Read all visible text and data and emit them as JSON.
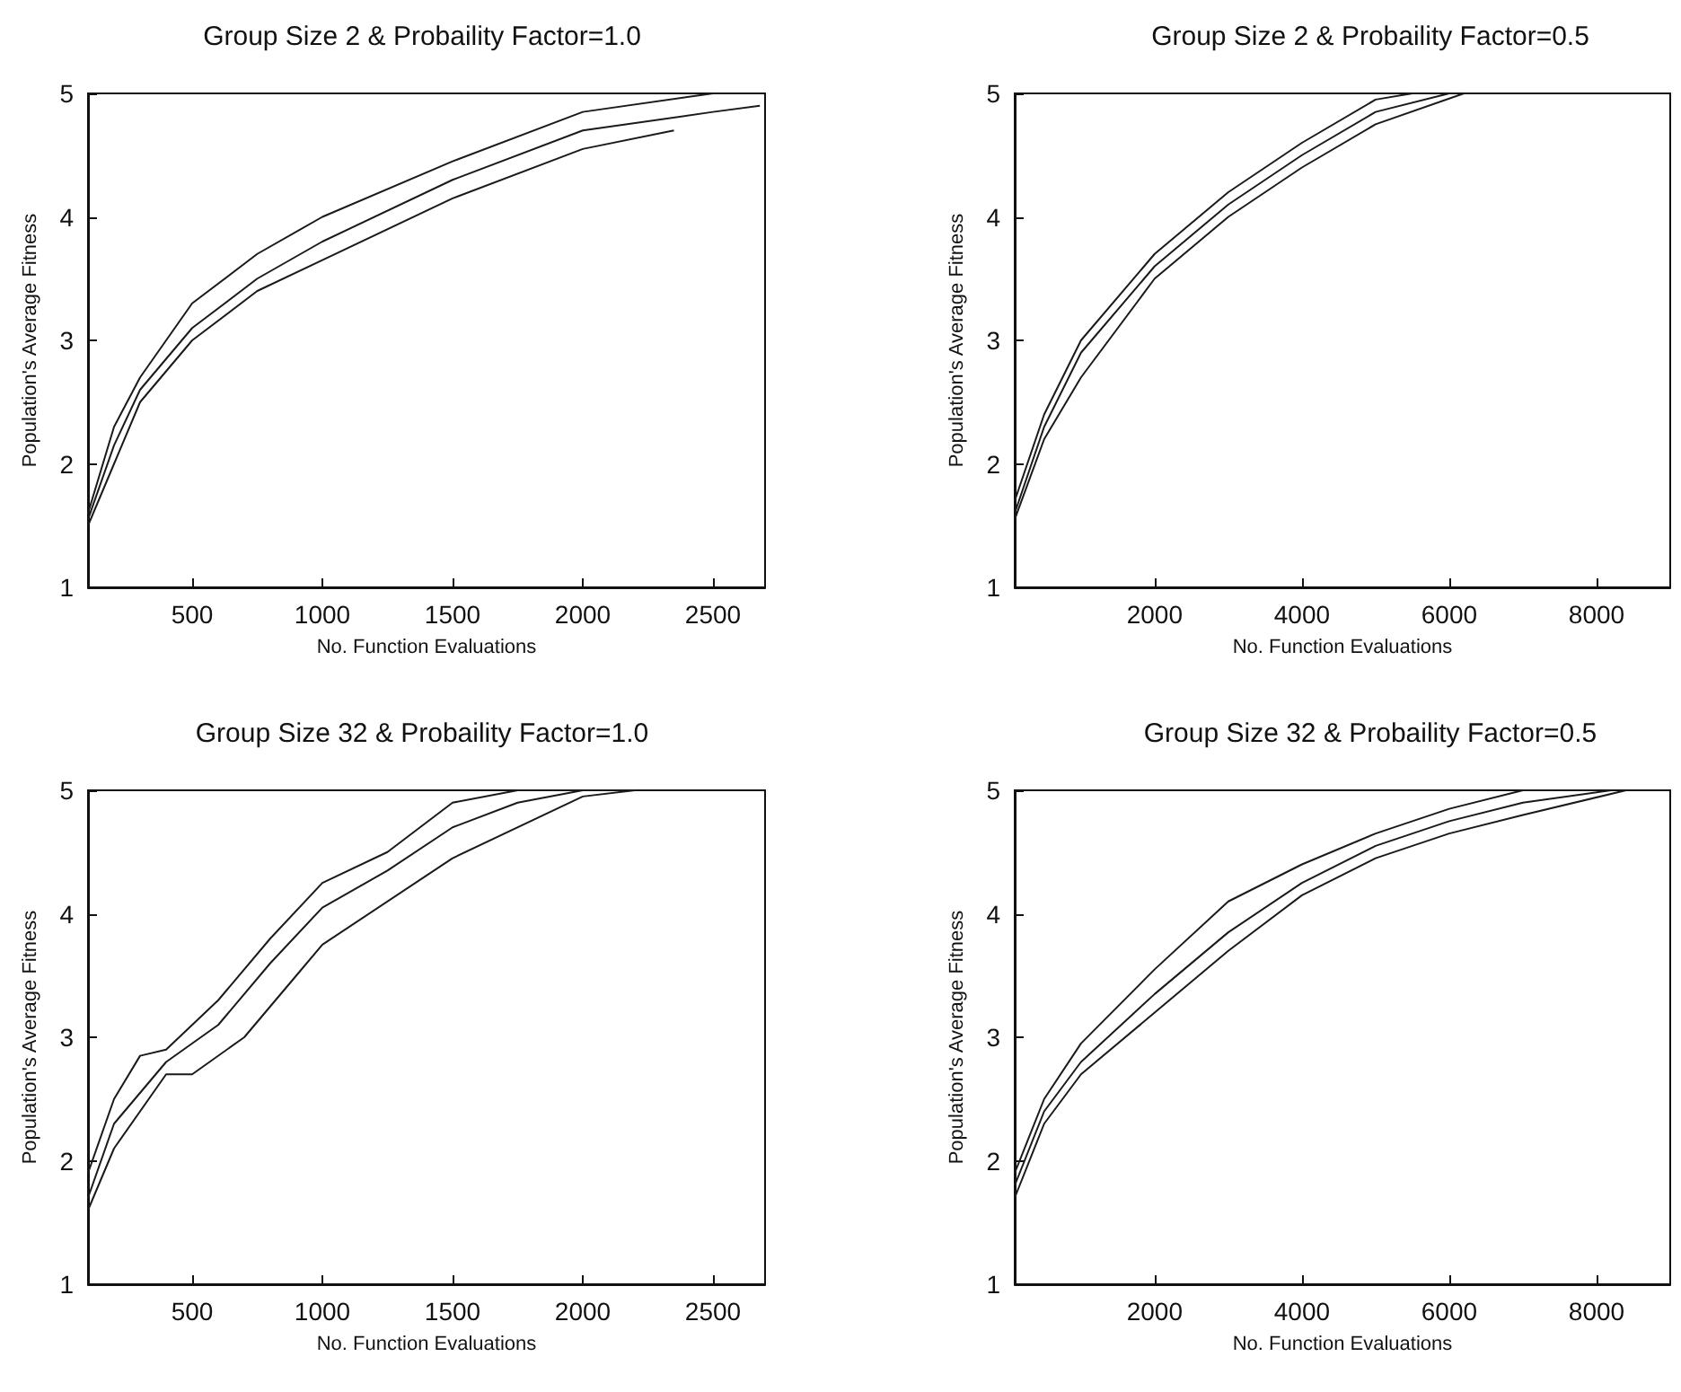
{
  "chart_data": [
    {
      "type": "line",
      "title": "Group Size 2 & Probaility Factor=1.0",
      "xlabel": "No. Function Evaluations",
      "ylabel": "Population's Average Fitness",
      "xlim": [
        100,
        2700
      ],
      "ylim": [
        1,
        5
      ],
      "xticks": [
        500,
        1000,
        1500,
        2000,
        2500
      ],
      "yticks": [
        1,
        2,
        3,
        4,
        5
      ],
      "line_style": "solid",
      "series": [
        {
          "color": "#1a1a1a",
          "x": [
            100,
            200,
            300,
            500,
            750,
            1000,
            1500,
            2000,
            2500
          ],
          "values": [
            1.6,
            2.3,
            2.7,
            3.3,
            3.7,
            4.0,
            4.45,
            4.85,
            5.0
          ]
        },
        {
          "color": "#1a1a1a",
          "x": [
            100,
            200,
            300,
            500,
            750,
            1000,
            1500,
            2000,
            2500,
            2680
          ],
          "values": [
            1.55,
            2.15,
            2.6,
            3.1,
            3.5,
            3.8,
            4.3,
            4.7,
            4.85,
            4.9
          ]
        },
        {
          "color": "#1a1a1a",
          "x": [
            100,
            200,
            300,
            500,
            750,
            1000,
            1500,
            2000,
            2350
          ],
          "values": [
            1.5,
            2.0,
            2.5,
            3.0,
            3.4,
            3.65,
            4.15,
            4.55,
            4.7
          ]
        }
      ]
    },
    {
      "type": "line",
      "title": "Group Size 2 & Probaility Factor=0.5",
      "xlabel": "No. Function Evaluations",
      "ylabel": "Population's Average Fitness",
      "xlim": [
        100,
        9000
      ],
      "ylim": [
        1,
        5
      ],
      "xticks": [
        2000,
        4000,
        6000,
        8000
      ],
      "yticks": [
        1,
        2,
        3,
        4,
        5
      ],
      "line_style": "solid",
      "series": [
        {
          "color": "#1a1a1a",
          "x": [
            100,
            500,
            1000,
            2000,
            3000,
            4000,
            5000,
            5500
          ],
          "values": [
            1.7,
            2.4,
            3.0,
            3.7,
            4.2,
            4.6,
            4.95,
            5.0
          ]
        },
        {
          "color": "#1a1a1a",
          "x": [
            100,
            500,
            1000,
            2000,
            3000,
            4000,
            5000,
            6000
          ],
          "values": [
            1.6,
            2.3,
            2.9,
            3.6,
            4.1,
            4.5,
            4.85,
            5.0
          ]
        },
        {
          "color": "#1a1a1a",
          "x": [
            100,
            500,
            1000,
            2000,
            3000,
            4000,
            5000,
            6200
          ],
          "values": [
            1.55,
            2.2,
            2.7,
            3.5,
            4.0,
            4.4,
            4.75,
            5.0
          ]
        }
      ]
    },
    {
      "type": "line",
      "title": "Group Size 32 & Probaility Factor=1.0",
      "xlabel": "No. Function Evaluations",
      "ylabel": "Population's Average Fitness",
      "xlim": [
        100,
        2700
      ],
      "ylim": [
        1,
        5
      ],
      "xticks": [
        500,
        1000,
        1500,
        2000,
        2500
      ],
      "yticks": [
        1,
        2,
        3,
        4,
        5
      ],
      "line_style": "solid",
      "series": [
        {
          "color": "#1a1a1a",
          "x": [
            100,
            200,
            300,
            400,
            600,
            800,
            1000,
            1250,
            1500,
            1750,
            2200
          ],
          "values": [
            1.9,
            2.5,
            2.85,
            2.9,
            3.3,
            3.8,
            4.25,
            4.5,
            4.9,
            5.0,
            5.0
          ]
        },
        {
          "color": "#1a1a1a",
          "x": [
            100,
            200,
            400,
            600,
            800,
            1000,
            1250,
            1500,
            1750,
            2000
          ],
          "values": [
            1.7,
            2.3,
            2.8,
            3.1,
            3.6,
            4.05,
            4.35,
            4.7,
            4.9,
            5.0
          ]
        },
        {
          "color": "#1a1a1a",
          "x": [
            100,
            200,
            400,
            500,
            700,
            900,
            1000,
            1500,
            2000,
            2200
          ],
          "values": [
            1.6,
            2.1,
            2.7,
            2.7,
            3.0,
            3.5,
            3.75,
            4.45,
            4.95,
            5.0
          ]
        }
      ]
    },
    {
      "type": "line",
      "title": "Group Size 32 & Probaility Factor=0.5",
      "xlabel": "No. Function Evaluations",
      "ylabel": "Population's Average Fitness",
      "xlim": [
        100,
        9000
      ],
      "ylim": [
        1,
        5
      ],
      "xticks": [
        2000,
        4000,
        6000,
        8000
      ],
      "yticks": [
        1,
        2,
        3,
        4,
        5
      ],
      "line_style": "solid",
      "series": [
        {
          "color": "#1a1a1a",
          "x": [
            100,
            500,
            1000,
            2000,
            3000,
            4000,
            5000,
            6000,
            7000,
            8000
          ],
          "values": [
            1.9,
            2.5,
            2.95,
            3.55,
            4.1,
            4.4,
            4.65,
            4.85,
            5.0,
            5.0
          ]
        },
        {
          "color": "#1a1a1a",
          "x": [
            100,
            500,
            1000,
            2000,
            3000,
            4000,
            5000,
            6000,
            7000,
            8200
          ],
          "values": [
            1.8,
            2.4,
            2.8,
            3.35,
            3.85,
            4.25,
            4.55,
            4.75,
            4.9,
            5.0
          ]
        },
        {
          "color": "#1a1a1a",
          "x": [
            100,
            500,
            1000,
            2000,
            3000,
            4000,
            5000,
            6000,
            7000,
            8400
          ],
          "values": [
            1.7,
            2.3,
            2.7,
            3.2,
            3.7,
            4.15,
            4.45,
            4.65,
            4.8,
            5.0
          ]
        }
      ]
    }
  ]
}
